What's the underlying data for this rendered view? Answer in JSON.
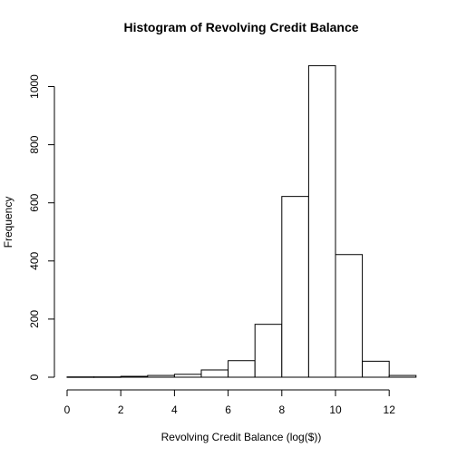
{
  "chart_data": {
    "type": "bar",
    "subtype": "histogram",
    "title": "Histogram of Revolving Credit Balance",
    "xlabel": "Revolving Credit Balance (log($))",
    "ylabel": "Frequency",
    "bin_edges": [
      0,
      1,
      2,
      3,
      4,
      5,
      6,
      7,
      8,
      9,
      10,
      11,
      12,
      13
    ],
    "values": [
      1,
      1,
      3,
      6,
      10,
      25,
      57,
      182,
      622,
      1072,
      422,
      55,
      6
    ],
    "xlim": [
      0,
      13
    ],
    "ylim": [
      0,
      1072
    ],
    "x_ticks": [
      0,
      2,
      4,
      6,
      8,
      10,
      12
    ],
    "y_ticks": [
      0,
      200,
      400,
      600,
      800,
      1000
    ],
    "x_tick_labels": [
      "0",
      "2",
      "4",
      "6",
      "8",
      "10",
      "12"
    ],
    "y_tick_labels": [
      "0",
      "200",
      "400",
      "600",
      "800",
      "1000"
    ],
    "grid": false,
    "bar_fill": "#ffffff",
    "bar_stroke": "#000000"
  }
}
